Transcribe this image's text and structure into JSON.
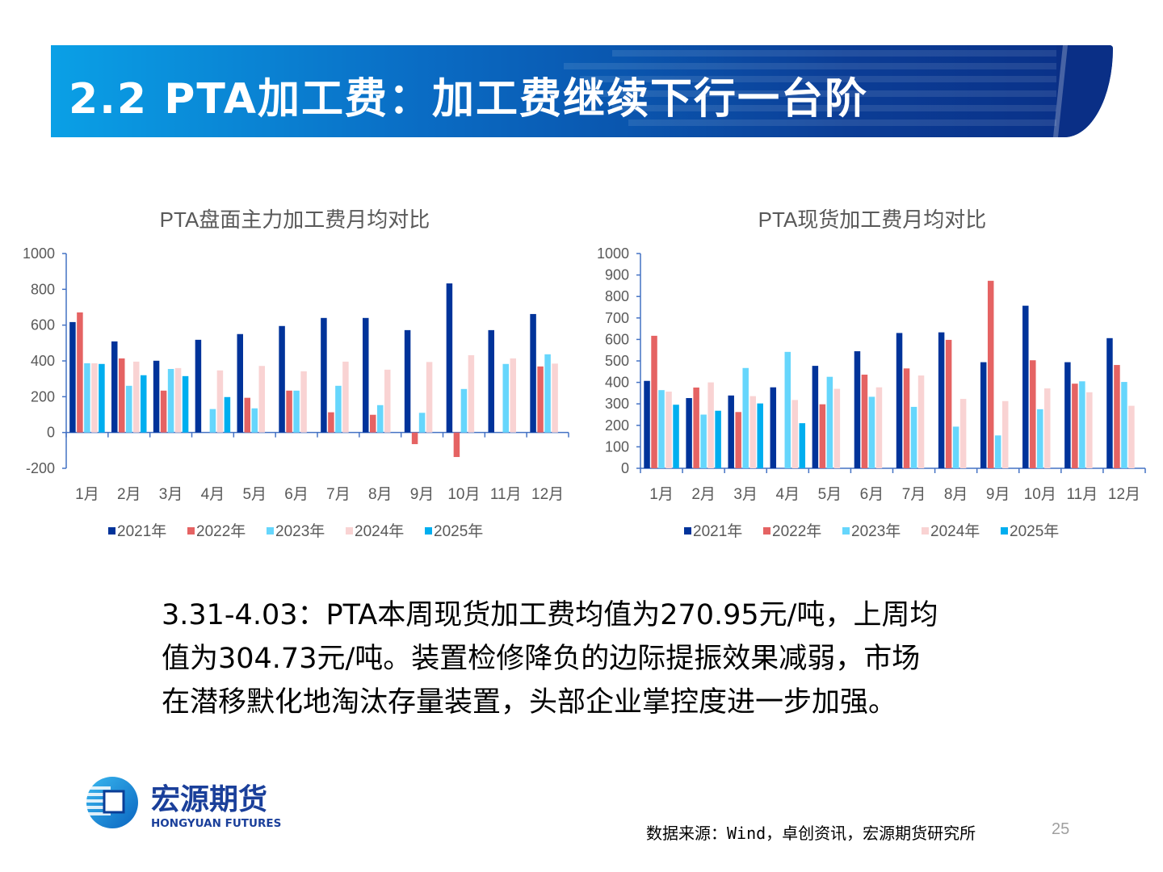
{
  "slide": {
    "title": "2.2 PTA加工费：加工费继续下行一台阶",
    "body_lines": [
      "3.31-4.03：PTA本周现货加工费均值为270.95元/吨，上周均",
      "值为304.73元/吨。装置检修降负的边际提振效果减弱，市场",
      "在潜移默化地淘汰存量装置，头部企业掌控度进一步加强。"
    ],
    "logo": {
      "cn": "宏源期货",
      "en": "HONGYUAN FUTURES"
    },
    "source": "数据来源：Wind，卓创资讯，宏源期货研究所",
    "page_number": "25"
  },
  "colors": {
    "2021年": "#00339a",
    "2022年": "#e56363",
    "2023年": "#66d6fc",
    "2024年": "#f9d3d3",
    "2025年": "#00aeef",
    "axis": "#4472c4",
    "tick_text": "#595959"
  },
  "chart_data": [
    {
      "type": "bar",
      "title": "PTA盘面主力加工费月均对比",
      "xlabel": "",
      "ylabel": "",
      "ylim": [
        -200,
        1000
      ],
      "yticks": [
        -200,
        0,
        200,
        400,
        600,
        800,
        1000
      ],
      "grid": false,
      "legend_position": "bottom",
      "categories": [
        "1月",
        "2月",
        "3月",
        "4月",
        "5月",
        "6月",
        "7月",
        "8月",
        "9月",
        "10月",
        "11月",
        "12月"
      ],
      "series": [
        {
          "name": "2021年",
          "values": [
            617,
            509,
            401,
            518,
            550,
            595,
            640,
            640,
            572,
            833,
            572,
            662
          ]
        },
        {
          "name": "2022年",
          "values": [
            671,
            414,
            234,
            null,
            194,
            234,
            113,
            99,
            -65,
            -137,
            null,
            369
          ]
        },
        {
          "name": "2023年",
          "values": [
            387,
            261,
            355,
            131,
            135,
            234,
            261,
            153,
            110,
            243,
            383,
            437
          ]
        },
        {
          "name": "2024年",
          "values": [
            387,
            396,
            360,
            347,
            372,
            342,
            396,
            351,
            394,
            432,
            414,
            385
          ]
        },
        {
          "name": "2025年",
          "values": [
            383,
            320,
            315,
            198,
            null,
            null,
            null,
            null,
            null,
            null,
            null,
            null
          ]
        }
      ]
    },
    {
      "type": "bar",
      "title": "PTA现货加工费月均对比",
      "xlabel": "",
      "ylabel": "",
      "ylim": [
        0,
        1000
      ],
      "yticks": [
        0,
        100,
        200,
        300,
        400,
        500,
        600,
        700,
        800,
        900,
        1000
      ],
      "grid": false,
      "legend_position": "bottom",
      "categories": [
        "1月",
        "2月",
        "3月",
        "4月",
        "5月",
        "6月",
        "7月",
        "8月",
        "9月",
        "10月",
        "11月",
        "12月"
      ],
      "series": [
        {
          "name": "2021年",
          "values": [
            407,
            327,
            339,
            377,
            477,
            545,
            630,
            633,
            494,
            757,
            494,
            606
          ]
        },
        {
          "name": "2022年",
          "values": [
            617,
            376,
            262,
            null,
            298,
            436,
            465,
            598,
            873,
            503,
            394,
            481
          ]
        },
        {
          "name": "2023年",
          "values": [
            364,
            250,
            467,
            542,
            426,
            333,
            286,
            194,
            153,
            275,
            405,
            402
          ]
        },
        {
          "name": "2024年",
          "values": [
            357,
            400,
            336,
            318,
            370,
            377,
            432,
            323,
            313,
            372,
            354,
            291
          ]
        },
        {
          "name": "2025年",
          "values": [
            296,
            268,
            302,
            210,
            null,
            null,
            null,
            null,
            null,
            null,
            null,
            null
          ]
        }
      ]
    }
  ]
}
